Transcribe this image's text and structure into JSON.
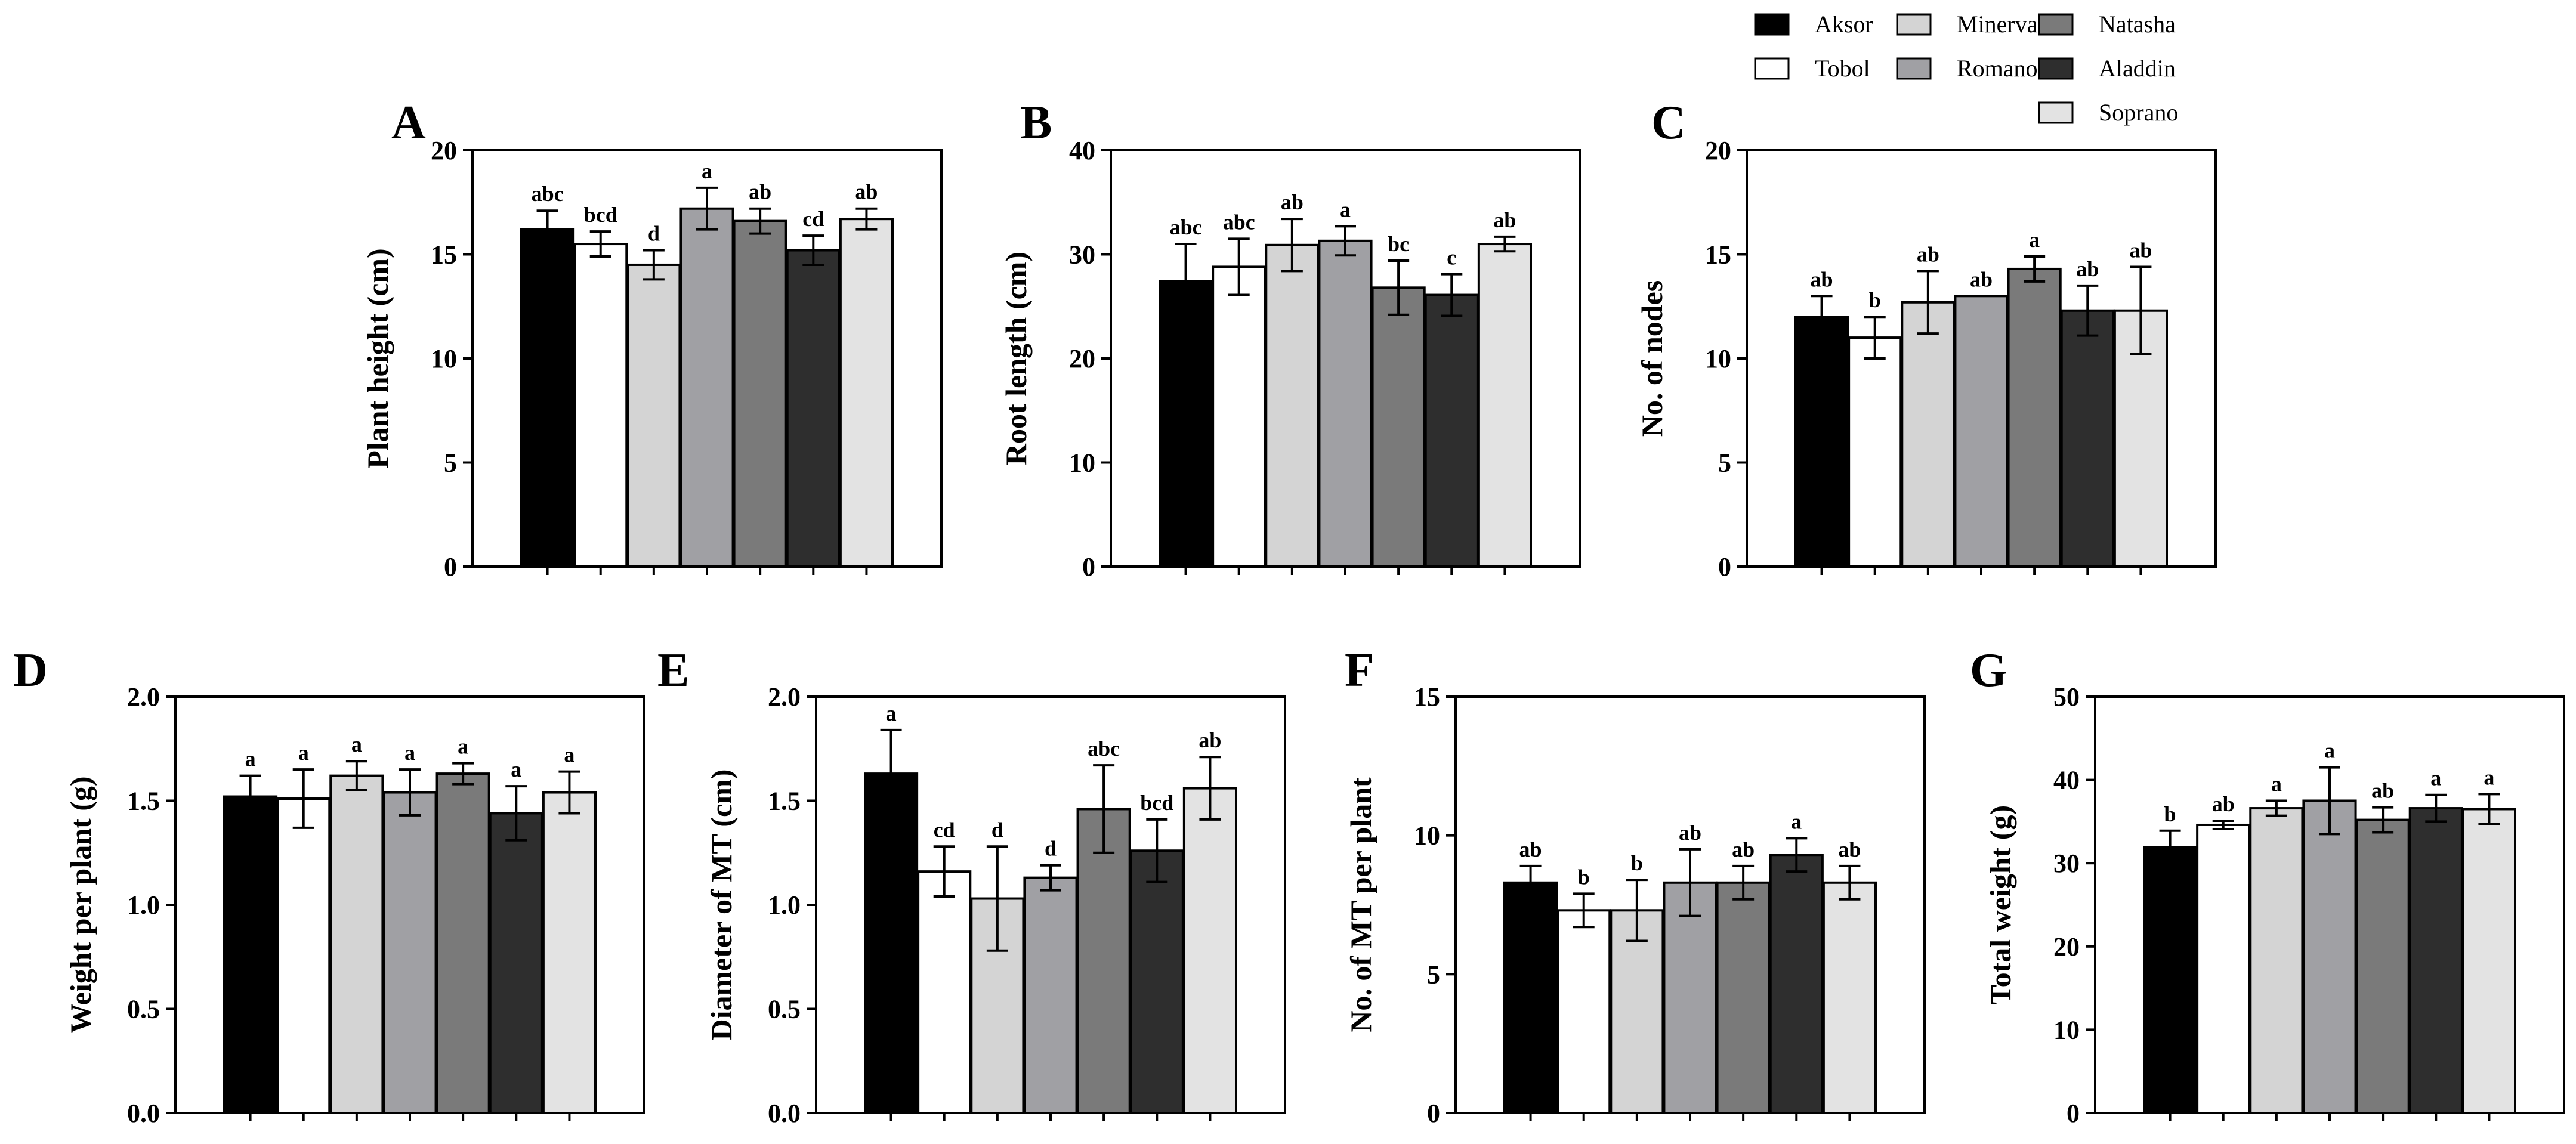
{
  "legend": {
    "items": [
      {
        "name": "Aksor",
        "color": "#000000"
      },
      {
        "name": "Minerva",
        "color": "#d4d4d4"
      },
      {
        "name": "Natasha",
        "color": "#7a7a7a"
      },
      {
        "name": "Tobol",
        "color": "#ffffff"
      },
      {
        "name": "Romano",
        "color": "#a0a0a4"
      },
      {
        "name": "Aladdin",
        "color": "#2e2e2e"
      },
      {
        "name": "Soprano",
        "color": "#e3e3e3"
      }
    ]
  },
  "series_order": [
    "Aksor",
    "Tobol",
    "Minerva",
    "Romano",
    "Natasha",
    "Aladdin",
    "Soprano"
  ],
  "chart_data": [
    {
      "panel": "A",
      "type": "bar",
      "ylabel": "Plant height (cm)",
      "ylim": [
        0,
        20
      ],
      "yticks": [
        "0",
        "5",
        "10",
        "15",
        "20"
      ],
      "ytick_values": [
        0,
        5,
        10,
        15,
        20
      ],
      "categories": [
        "Aksor",
        "Tobol",
        "Minerva",
        "Romano",
        "Natasha",
        "Aladdin",
        "Soprano"
      ],
      "values": [
        16.2,
        15.5,
        14.5,
        17.2,
        16.6,
        15.2,
        16.7
      ],
      "errors": [
        0.9,
        0.6,
        0.7,
        1.0,
        0.6,
        0.7,
        0.5
      ],
      "letters": [
        "abc",
        "bcd",
        "d",
        "a",
        "ab",
        "cd",
        "ab"
      ]
    },
    {
      "panel": "B",
      "type": "bar",
      "ylabel": "Root length (cm)",
      "ylim": [
        0,
        40
      ],
      "yticks": [
        "0",
        "10",
        "20",
        "30",
        "40"
      ],
      "ytick_values": [
        0,
        10,
        20,
        30,
        40
      ],
      "categories": [
        "Aksor",
        "Tobol",
        "Minerva",
        "Romano",
        "Natasha",
        "Aladdin",
        "Soprano"
      ],
      "values": [
        27.4,
        28.8,
        30.9,
        31.3,
        26.8,
        26.1,
        31.0
      ],
      "errors": [
        3.6,
        2.7,
        2.5,
        1.4,
        2.6,
        2.0,
        0.7
      ],
      "letters": [
        "abc",
        "abc",
        "ab",
        "a",
        "bc",
        "c",
        "ab"
      ]
    },
    {
      "panel": "C",
      "type": "bar",
      "ylabel": "No. of nodes",
      "ylim": [
        0,
        20
      ],
      "yticks": [
        "0",
        "5",
        "10",
        "15",
        "20"
      ],
      "ytick_values": [
        0,
        5,
        10,
        15,
        20
      ],
      "categories": [
        "Aksor",
        "Tobol",
        "Minerva",
        "Romano",
        "Natasha",
        "Aladdin",
        "Soprano"
      ],
      "values": [
        12.0,
        11.0,
        12.7,
        13.0,
        14.3,
        12.3,
        12.3
      ],
      "errors": [
        1.0,
        1.0,
        1.5,
        0.0,
        0.6,
        1.2,
        2.1
      ],
      "letters": [
        "ab",
        "b",
        "ab",
        "ab",
        "a",
        "ab",
        "ab"
      ]
    },
    {
      "panel": "D",
      "type": "bar",
      "ylabel": "Weight per plant (g)",
      "ylim": [
        0,
        2.0
      ],
      "yticks": [
        "0.0",
        "0.5",
        "1.0",
        "1.5",
        "2.0"
      ],
      "ytick_values": [
        0,
        0.5,
        1.0,
        1.5,
        2.0
      ],
      "categories": [
        "Aksor",
        "Tobol",
        "Minerva",
        "Romano",
        "Natasha",
        "Aladdin",
        "Soprano"
      ],
      "values": [
        1.52,
        1.51,
        1.62,
        1.54,
        1.63,
        1.44,
        1.54
      ],
      "errors": [
        0.1,
        0.14,
        0.07,
        0.11,
        0.05,
        0.13,
        0.1
      ],
      "letters": [
        "a",
        "a",
        "a",
        "a",
        "a",
        "a",
        "a"
      ]
    },
    {
      "panel": "E",
      "type": "bar",
      "ylabel": "Diameter of MT (cm)",
      "ylim": [
        0,
        2.0
      ],
      "yticks": [
        "0.0",
        "0.5",
        "1.0",
        "1.5",
        "2.0"
      ],
      "ytick_values": [
        0,
        0.5,
        1.0,
        1.5,
        2.0
      ],
      "categories": [
        "Aksor",
        "Tobol",
        "Minerva",
        "Romano",
        "Natasha",
        "Aladdin",
        "Soprano"
      ],
      "values": [
        1.63,
        1.16,
        1.03,
        1.13,
        1.46,
        1.26,
        1.56
      ],
      "errors": [
        0.21,
        0.12,
        0.25,
        0.06,
        0.21,
        0.15,
        0.15
      ],
      "letters": [
        "a",
        "cd",
        "d",
        "d",
        "abc",
        "bcd",
        "ab"
      ]
    },
    {
      "panel": "F",
      "type": "bar",
      "ylabel": "No. of MT per plant",
      "ylim": [
        0,
        15
      ],
      "yticks": [
        "0",
        "5",
        "10",
        "15"
      ],
      "ytick_values": [
        0,
        5,
        10,
        15
      ],
      "categories": [
        "Aksor",
        "Tobol",
        "Minerva",
        "Romano",
        "Natasha",
        "Aladdin",
        "Soprano"
      ],
      "values": [
        8.3,
        7.3,
        7.3,
        8.3,
        8.3,
        9.3,
        8.3
      ],
      "errors": [
        0.6,
        0.6,
        1.1,
        1.2,
        0.6,
        0.6,
        0.6
      ],
      "letters": [
        "ab",
        "b",
        "b",
        "ab",
        "ab",
        "a",
        "ab"
      ]
    },
    {
      "panel": "G",
      "type": "bar",
      "ylabel": "Total weight (g)",
      "ylim": [
        0,
        50
      ],
      "yticks": [
        "0",
        "10",
        "20",
        "30",
        "40",
        "50"
      ],
      "ytick_values": [
        0,
        10,
        20,
        30,
        40,
        50
      ],
      "categories": [
        "Aksor",
        "Tobol",
        "Minerva",
        "Romano",
        "Natasha",
        "Aladdin",
        "Soprano"
      ],
      "values": [
        31.9,
        34.6,
        36.6,
        37.5,
        35.2,
        36.6,
        36.5
      ],
      "errors": [
        2.0,
        0.5,
        0.9,
        4.0,
        1.5,
        1.6,
        1.8
      ],
      "letters": [
        "b",
        "ab",
        "a",
        "a",
        "ab",
        "a",
        "a"
      ]
    }
  ]
}
